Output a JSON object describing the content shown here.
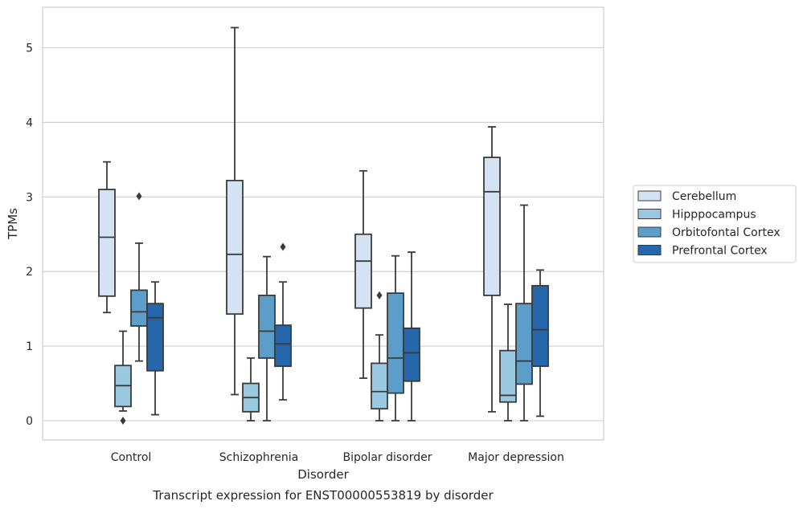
{
  "chart_data": {
    "type": "box",
    "caption": "Transcript expression for ENST00000553819 by disorder",
    "xlabel": "Disorder",
    "ylabel": "TPMs",
    "ylim": [
      -0.25,
      5.5
    ],
    "yticks": [
      0,
      1,
      2,
      3,
      4,
      5
    ],
    "grid": true,
    "legend_position": "right",
    "categories": [
      "Control",
      "Schizophrenia",
      "Bipolar disorder",
      "Major depression"
    ],
    "series": [
      {
        "name": "Cerebellum",
        "color": "#d3e3f3",
        "boxes": [
          {
            "whisker_low": 1.45,
            "q1": 1.67,
            "median": 2.46,
            "q3": 3.1,
            "whisker_high": 3.47,
            "outliers": []
          },
          {
            "whisker_low": 0.35,
            "q1": 1.43,
            "median": 2.23,
            "q3": 3.22,
            "whisker_high": 5.27,
            "outliers": []
          },
          {
            "whisker_low": 0.57,
            "q1": 1.51,
            "median": 2.14,
            "q3": 2.5,
            "whisker_high": 3.35,
            "outliers": []
          },
          {
            "whisker_low": 0.12,
            "q1": 1.68,
            "median": 3.07,
            "q3": 3.53,
            "whisker_high": 3.94,
            "outliers": []
          }
        ]
      },
      {
        "name": "Hipppocampus",
        "color": "#9ac8e0",
        "boxes": [
          {
            "whisker_low": 0.13,
            "q1": 0.19,
            "median": 0.47,
            "q3": 0.74,
            "whisker_high": 1.2,
            "outliers": [
              0.0
            ]
          },
          {
            "whisker_low": 0.0,
            "q1": 0.12,
            "median": 0.31,
            "q3": 0.5,
            "whisker_high": 0.84,
            "outliers": []
          },
          {
            "whisker_low": 0.0,
            "q1": 0.16,
            "median": 0.39,
            "q3": 0.77,
            "whisker_high": 1.15,
            "outliers": [
              1.68
            ]
          },
          {
            "whisker_low": 0.0,
            "q1": 0.25,
            "median": 0.34,
            "q3": 0.94,
            "whisker_high": 1.56,
            "outliers": []
          }
        ]
      },
      {
        "name": "Orbitofontal Cortex",
        "color": "#5a9ec9",
        "boxes": [
          {
            "whisker_low": 0.8,
            "q1": 1.27,
            "median": 1.46,
            "q3": 1.75,
            "whisker_high": 2.38,
            "outliers": [
              3.01
            ]
          },
          {
            "whisker_low": 0.0,
            "q1": 0.84,
            "median": 1.2,
            "q3": 1.68,
            "whisker_high": 2.2,
            "outliers": []
          },
          {
            "whisker_low": 0.0,
            "q1": 0.37,
            "median": 0.84,
            "q3": 1.71,
            "whisker_high": 2.21,
            "outliers": []
          },
          {
            "whisker_low": 0.0,
            "q1": 0.49,
            "median": 0.8,
            "q3": 1.57,
            "whisker_high": 2.89,
            "outliers": []
          }
        ]
      },
      {
        "name": "Prefrontal Cortex",
        "color": "#2666ab",
        "boxes": [
          {
            "whisker_low": 0.08,
            "q1": 0.67,
            "median": 1.38,
            "q3": 1.57,
            "whisker_high": 1.86,
            "outliers": []
          },
          {
            "whisker_low": 0.28,
            "q1": 0.73,
            "median": 1.03,
            "q3": 1.28,
            "whisker_high": 1.86,
            "outliers": [
              2.33
            ]
          },
          {
            "whisker_low": 0.0,
            "q1": 0.53,
            "median": 0.91,
            "q3": 1.24,
            "whisker_high": 2.26,
            "outliers": []
          },
          {
            "whisker_low": 0.06,
            "q1": 0.73,
            "median": 1.22,
            "q3": 1.81,
            "whisker_high": 2.02,
            "outliers": []
          }
        ]
      }
    ]
  }
}
